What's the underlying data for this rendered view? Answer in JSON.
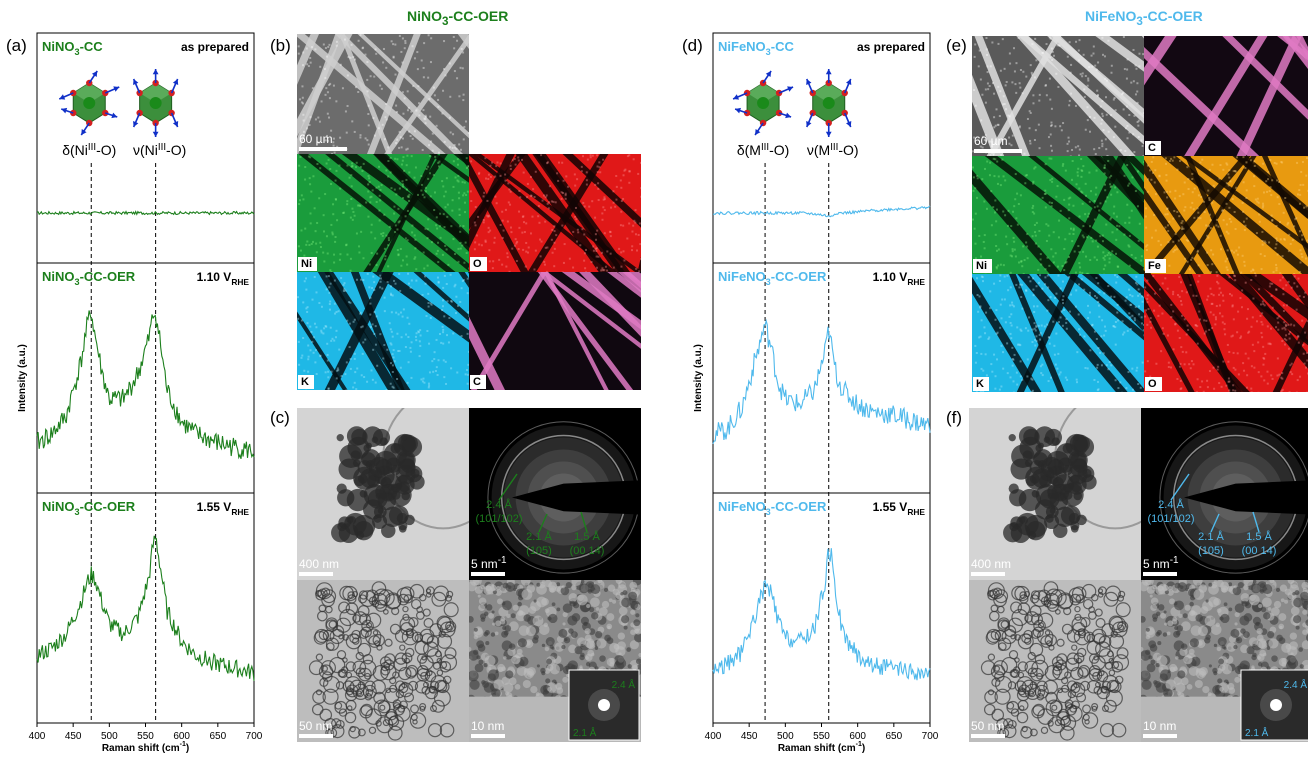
{
  "titles": {
    "left_html": "NiNO<sub>3</sub>-CC-OER",
    "right_html": "NiFeNO<sub>3</sub>-CC-OER"
  },
  "colors": {
    "green": "#1c7f1c",
    "blue": "#4fb9ec",
    "ni_map": "#1a9c3c",
    "o_map": "#e01818",
    "k_map": "#1fb8e6",
    "c_map": "#e07ac4",
    "fe_map": "#e89a10"
  },
  "letters": {
    "a": "(a)",
    "b": "(b)",
    "c": "(c)",
    "d": "(d)",
    "e": "(e)",
    "f": "(f)"
  },
  "raman": {
    "xlabel": "Raman shift (cm<sup>-1</sup>)",
    "ylabel": "Intensity (a.u.)",
    "ticks": [
      "400",
      "450",
      "500",
      "550",
      "600",
      "650",
      "700"
    ],
    "left": {
      "structure_labels": [
        "δ(Ni<sup>III</sup>-O)",
        "ν(Ni<sup>III</sup>-O)"
      ],
      "dashed_x": [
        475,
        564
      ],
      "panels": [
        {
          "name_html": "NiNO<sub>3</sub>-CC",
          "cond_html": "as prepared"
        },
        {
          "name_html": "NiNO<sub>3</sub>-CC-OER",
          "cond_html": "1.10 V<sub>RHE</sub>"
        },
        {
          "name_html": "NiNO<sub>3</sub>-CC-OER",
          "cond_html": "1.55 V<sub>RHE</sub>"
        }
      ]
    },
    "right": {
      "structure_labels": [
        "δ(M<sup>III</sup>-O)",
        "ν(M<sup>III</sup>-O)"
      ],
      "dashed_x": [
        472,
        560
      ],
      "panels": [
        {
          "name_html": "NiFeNO<sub>3</sub>-CC",
          "cond_html": "as prepared"
        },
        {
          "name_html": "NiFeNO<sub>3</sub>-CC-OER",
          "cond_html": "1.10 V<sub>RHE</sub>"
        },
        {
          "name_html": "NiFeNO<sub>3</sub>-CC-OER",
          "cond_html": "1.55 V<sub>RHE</sub>"
        }
      ]
    }
  },
  "chart_data": [
    {
      "type": "line",
      "x": [
        400,
        420,
        440,
        460,
        470,
        475,
        480,
        490,
        500,
        520,
        540,
        555,
        560,
        564,
        570,
        580,
        600,
        620,
        650,
        680,
        700
      ],
      "xlabel": "Raman shift (cm-1)",
      "ylabel": "Intensity (a.u.)",
      "xlim": [
        400,
        700
      ],
      "series": [
        {
          "name": "NiNO3-CC as prepared",
          "values": [
            0.5,
            0.5,
            0.5,
            0.5,
            0.5,
            0.5,
            0.5,
            0.5,
            0.5,
            0.5,
            0.5,
            0.5,
            0.5,
            0.5,
            0.5,
            0.5,
            0.5,
            0.5,
            0.5,
            0.5,
            0.5
          ]
        },
        {
          "name": "NiNO3-CC-OER 1.10 VRHE",
          "values": [
            0.2,
            0.25,
            0.35,
            0.65,
            0.88,
            0.95,
            0.82,
            0.6,
            0.45,
            0.45,
            0.6,
            0.8,
            0.92,
            0.95,
            0.78,
            0.5,
            0.32,
            0.25,
            0.2,
            0.17,
            0.15
          ]
        },
        {
          "name": "NiNO3-CC-OER 1.55 VRHE",
          "values": [
            0.3,
            0.34,
            0.42,
            0.6,
            0.72,
            0.76,
            0.74,
            0.6,
            0.48,
            0.42,
            0.52,
            0.75,
            0.92,
            0.98,
            0.82,
            0.55,
            0.38,
            0.3,
            0.25,
            0.22,
            0.2
          ]
        }
      ]
    },
    {
      "type": "line",
      "x": [
        400,
        420,
        440,
        460,
        470,
        472,
        480,
        490,
        500,
        520,
        540,
        555,
        560,
        565,
        570,
        580,
        600,
        620,
        650,
        680,
        700
      ],
      "xlabel": "Raman shift (cm-1)",
      "ylabel": "Intensity (a.u.)",
      "xlim": [
        400,
        700
      ],
      "series": [
        {
          "name": "NiFeNO3-CC as prepared",
          "values": [
            0.5,
            0.5,
            0.5,
            0.5,
            0.5,
            0.5,
            0.5,
            0.5,
            0.5,
            0.5,
            0.48,
            0.45,
            0.42,
            0.45,
            0.5,
            0.5,
            0.52,
            0.55,
            0.58,
            0.6,
            0.62
          ]
        },
        {
          "name": "NiFeNO3-CC-OER 1.10 VRHE",
          "values": [
            0.25,
            0.28,
            0.4,
            0.7,
            0.85,
            0.88,
            0.75,
            0.55,
            0.45,
            0.42,
            0.5,
            0.72,
            0.85,
            0.72,
            0.6,
            0.5,
            0.42,
            0.38,
            0.36,
            0.32,
            0.3
          ]
        },
        {
          "name": "NiFeNO3-CC-OER 1.55 VRHE",
          "values": [
            0.22,
            0.25,
            0.32,
            0.55,
            0.68,
            0.7,
            0.66,
            0.5,
            0.4,
            0.38,
            0.45,
            0.72,
            0.9,
            0.85,
            0.65,
            0.42,
            0.3,
            0.25,
            0.22,
            0.2,
            0.18
          ]
        }
      ]
    }
  ],
  "eds_left": {
    "sem_scale": "60 µm",
    "labels": [
      "Ni",
      "O",
      "K",
      "C"
    ]
  },
  "eds_right": {
    "sem_scale": "60 µm",
    "labels": [
      "C",
      "Ni",
      "Fe",
      "K",
      "O"
    ]
  },
  "tem_left": {
    "scales": [
      "400 nm",
      "5 nm<sup>-1</sup>",
      "50 nm",
      "10 nm"
    ],
    "saed_lines": [
      "2.4 Å",
      "(101/102)",
      "2.1 Å",
      "(105)",
      "1.5 Å",
      "(00 14)"
    ],
    "fft_labels": [
      "2.4 Å",
      "2.1 Å"
    ]
  },
  "tem_right": {
    "scales": [
      "400 nm",
      "5 nm<sup>-1</sup>",
      "50 nm",
      "10 nm"
    ],
    "saed_lines": [
      "2.4 Å",
      "(101/102)",
      "2.1 Å",
      "(105)",
      "1.5 Å",
      "(00 14)"
    ],
    "fft_labels": [
      "2.4 Å",
      "2.1 Å"
    ]
  }
}
